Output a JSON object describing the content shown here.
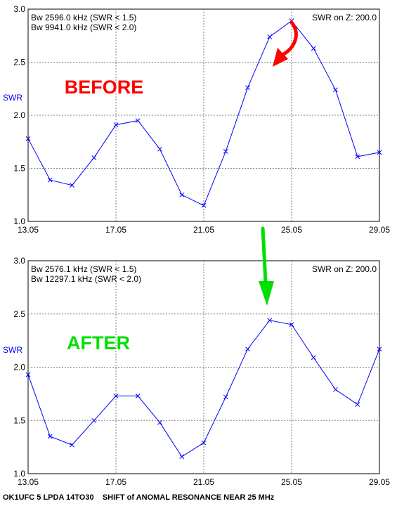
{
  "caption": "OK1UFC 5 LPDA 14TO30    SHIFT of ANOMAL RESONANCE NEAR 25 MHz",
  "chart_data": [
    {
      "type": "line",
      "title": "BEFORE",
      "title_color": "#ff0000",
      "ylabel": "SWR",
      "xlabel": "",
      "xlim": [
        13.05,
        29.05
      ],
      "ylim": [
        1.0,
        3.0
      ],
      "x_ticks": [
        "13.05",
        "17.05",
        "21.05",
        "25.05",
        "29.05"
      ],
      "x_tick_values": [
        13.05,
        17.05,
        21.05,
        25.05,
        29.05
      ],
      "y_ticks": [
        "1.0",
        "1.5",
        "2.0",
        "2.5",
        "3.0"
      ],
      "y_tick_values": [
        1.0,
        1.5,
        2.0,
        2.5,
        3.0
      ],
      "grid": true,
      "annotations_top_left": [
        "Bw 2596.0 kHz (SWR < 1.5)",
        "Bw 9941.0 kHz (SWR < 2.0)"
      ],
      "annotation_top_right": "SWR on Z: 200.0",
      "line_color": "#0000ff",
      "arrow_color": "#ff0000",
      "series": [
        {
          "x": [
            13.05,
            14.05,
            15.05,
            16.05,
            17.05,
            18.05,
            19.05,
            20.05,
            21.05,
            22.05,
            23.05,
            24.05,
            25.05,
            26.05,
            27.05,
            28.05,
            29.05
          ],
          "values": [
            1.78,
            1.39,
            1.34,
            1.6,
            1.91,
            1.95,
            1.68,
            1.25,
            1.15,
            1.66,
            2.26,
            2.74,
            2.89,
            2.63,
            2.24,
            1.61,
            1.65
          ]
        }
      ]
    },
    {
      "type": "line",
      "title": "AFTER",
      "title_color": "#00e000",
      "ylabel": "SWR",
      "xlabel": "",
      "xlim": [
        13.05,
        29.05
      ],
      "ylim": [
        1.0,
        3.0
      ],
      "x_ticks": [
        "13.05",
        "17.05",
        "21.05",
        "25.05",
        "29.05"
      ],
      "x_tick_values": [
        13.05,
        17.05,
        21.05,
        25.05,
        29.05
      ],
      "y_ticks": [
        "1.0",
        "1.5",
        "2.0",
        "2.5",
        "3.0"
      ],
      "y_tick_values": [
        1.0,
        1.5,
        2.0,
        2.5,
        3.0
      ],
      "grid": true,
      "annotations_top_left": [
        "Bw 2576.1 kHz (SWR < 1.5)",
        "Bw 12297.1 kHz (SWR < 2.0)"
      ],
      "annotation_top_right": "SWR on Z: 200.0",
      "line_color": "#0000ff",
      "arrow_color": "#00e000",
      "series": [
        {
          "x": [
            13.05,
            14.05,
            15.05,
            16.05,
            17.05,
            18.05,
            19.05,
            20.05,
            21.05,
            22.05,
            23.05,
            24.05,
            25.05,
            26.05,
            27.05,
            28.05,
            29.05
          ],
          "values": [
            1.93,
            1.35,
            1.27,
            1.5,
            1.73,
            1.73,
            1.48,
            1.16,
            1.29,
            1.72,
            2.17,
            2.44,
            2.4,
            2.09,
            1.79,
            1.65,
            2.17
          ]
        }
      ]
    }
  ]
}
